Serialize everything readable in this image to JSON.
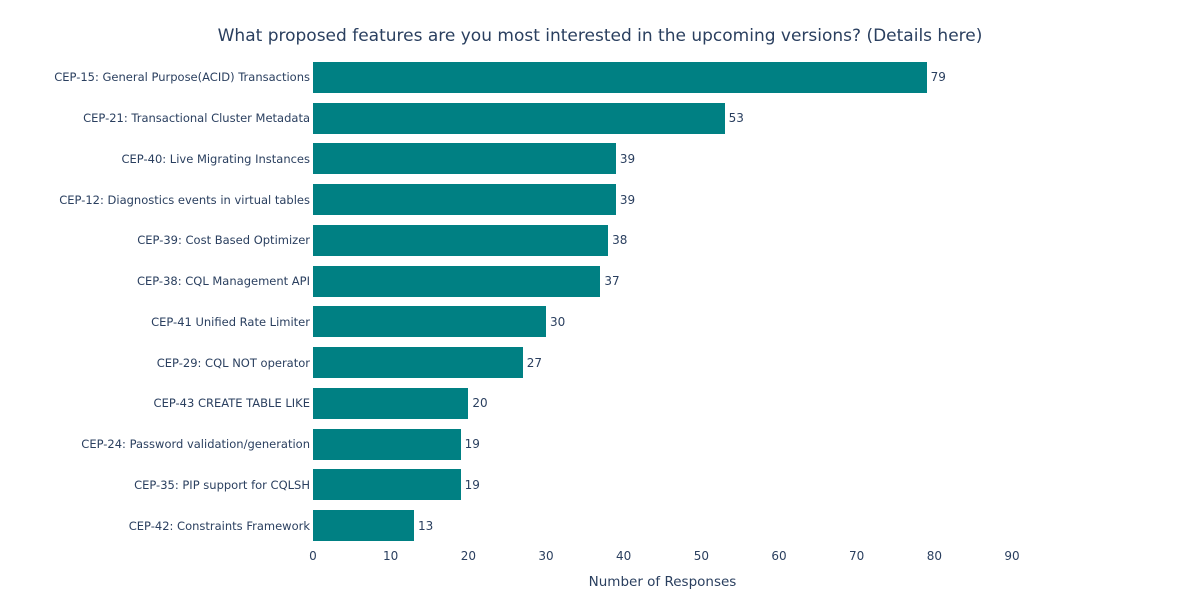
{
  "chart": {
    "title": "What proposed features are you most interested in the upcoming versions? (Details here)",
    "xlabel": "Number of Responses"
  },
  "chart_data": {
    "type": "bar",
    "orientation": "horizontal",
    "title": "What proposed features are you most interested in the upcoming versions? (Details here)",
    "xlabel": "Number of Responses",
    "ylabel": "",
    "categories": [
      "CEP-15: General Purpose(ACID) Transactions",
      "CEP-21: Transactional Cluster Metadata",
      "CEP-40: Live Migrating Instances",
      "CEP-12: Diagnostics events in virtual tables",
      "CEP-39: Cost Based Optimizer",
      "CEP-38: CQL Management API",
      "CEP-41 Unified Rate Limiter",
      "CEP-29: CQL NOT operator",
      "CEP-43 CREATE TABLE LIKE",
      "CEP-24: Password validation/generation",
      "CEP-35: PIP support for CQLSH",
      "CEP-42: Constraints Framework"
    ],
    "values": [
      79,
      53,
      39,
      39,
      38,
      37,
      30,
      27,
      20,
      19,
      19,
      13
    ],
    "xlim": [
      0,
      90
    ],
    "xticks": [
      0,
      10,
      20,
      30,
      40,
      50,
      60,
      70,
      80,
      90
    ],
    "grid": false,
    "legend": "none",
    "value_labels": true,
    "bar_color": "#008083",
    "text_color": "#2a3f5f",
    "background_color": "#ffffff"
  }
}
